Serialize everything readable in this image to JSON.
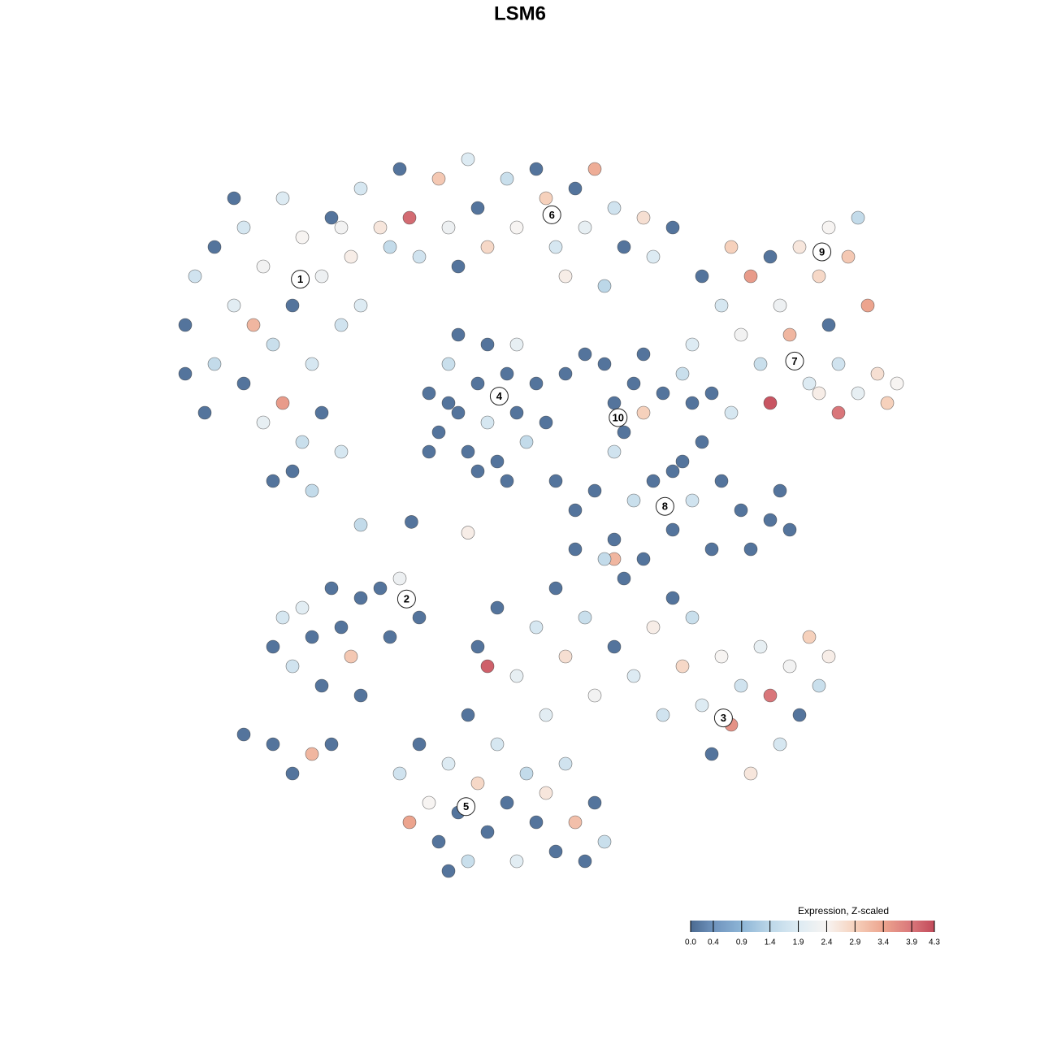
{
  "chart_data": {
    "type": "scatter",
    "title": "LSM6",
    "xlim": [
      -40,
      40
    ],
    "ylim": [
      -40,
      40
    ],
    "series": [
      {
        "name": "cells",
        "x": [
          -36,
          -35,
          -33,
          -31,
          -30,
          -28,
          -27,
          -26,
          -25,
          -24,
          -23,
          -22,
          -21,
          -20,
          -19,
          -33,
          -30,
          -28,
          -26,
          -24,
          -22,
          -25,
          -27,
          -20,
          -23,
          -31,
          -18,
          -29,
          -36,
          -34,
          -18,
          -16,
          -14,
          -13,
          -12,
          -10,
          -9,
          -7,
          -6,
          -5,
          -3,
          -2,
          0,
          1,
          2,
          4,
          5,
          6,
          8,
          9,
          11,
          12,
          14,
          -15,
          -8,
          3,
          7,
          -20,
          -11,
          -10,
          -9,
          -8,
          -7,
          -6,
          -5,
          -5,
          -4,
          -3,
          -2,
          -1,
          0,
          1,
          -8,
          -2,
          -11,
          -6,
          -3,
          -9,
          3,
          5,
          7,
          8,
          9,
          10,
          8,
          11,
          11,
          13,
          17,
          19,
          20,
          21,
          22,
          23,
          24,
          25,
          26,
          27,
          28,
          29,
          30,
          31,
          32,
          33,
          34,
          35,
          36,
          37,
          31,
          29,
          24,
          20,
          18,
          15,
          16,
          33,
          30,
          2,
          4,
          6,
          8,
          10,
          12,
          14,
          15,
          16,
          18,
          19,
          21,
          22,
          24,
          25,
          26,
          17,
          16,
          14,
          8,
          -27,
          -25,
          -23,
          -22,
          -20,
          -19,
          -18,
          -16,
          -15,
          -14,
          -12,
          -24,
          -26,
          -21,
          -30,
          -27,
          -25,
          -23,
          -21,
          -18,
          -6,
          -4,
          -2,
          0,
          2,
          3,
          5,
          6,
          8,
          9,
          10,
          12,
          13,
          14,
          15,
          17,
          18,
          19,
          20,
          21,
          22,
          23,
          24,
          25,
          26,
          27,
          28,
          29,
          30,
          -5,
          4,
          7,
          11,
          16,
          -7,
          1,
          -14,
          -12,
          -11,
          -10,
          -9,
          -8,
          -7,
          -6,
          -5,
          -4,
          -3,
          -2,
          -1,
          0,
          1,
          2,
          3,
          4,
          6,
          7,
          -13,
          -9,
          5,
          -18,
          -12.8,
          -7
        ],
        "y": [
          20,
          25,
          28,
          22,
          30,
          26,
          18,
          33,
          22,
          29,
          16,
          25,
          31,
          20,
          27,
          16,
          14,
          10,
          12,
          8,
          11,
          5,
          4,
          7,
          3,
          33,
          22,
          20,
          15,
          11,
          34,
          30,
          36,
          31,
          27,
          35,
          30,
          37,
          32,
          28,
          35,
          30,
          36,
          33,
          28,
          34,
          30,
          36,
          32,
          28,
          31,
          27,
          30,
          28,
          26,
          25,
          24,
          30,
          13,
          9,
          16,
          11,
          7,
          14,
          18,
          10,
          6,
          15,
          11,
          8,
          14,
          10,
          19,
          18,
          7,
          5,
          4,
          12,
          15,
          17,
          16,
          12,
          9,
          14,
          7,
          11,
          17,
          13,
          25,
          22,
          28,
          19,
          25,
          16,
          27,
          22,
          19,
          28,
          14,
          25,
          30,
          16,
          27,
          13,
          22,
          15,
          12,
          14,
          11,
          13,
          12,
          11,
          13,
          15,
          18,
          31,
          20,
          4,
          1,
          3,
          -2,
          2,
          4,
          -1,
          6,
          2,
          -3,
          4,
          1,
          -3,
          0,
          3,
          -1,
          8,
          12,
          5,
          -4,
          -13,
          -15,
          -12,
          -17,
          -11,
          -14,
          -8,
          -7,
          -12,
          -6,
          -10,
          -9,
          -10,
          -7,
          -22,
          -23,
          -26,
          -24,
          -23,
          -18,
          -13,
          -9,
          -16,
          -11,
          -7,
          -14,
          -10,
          -18,
          -13,
          -6,
          -16,
          -11,
          -20,
          -8,
          -15,
          -19,
          -24,
          -14,
          -21,
          -17,
          -26,
          -13,
          -18,
          -23,
          -15,
          -20,
          -12,
          -17,
          -14,
          -15,
          -3,
          -4,
          -4,
          -10,
          -20,
          -20,
          -26,
          -23,
          -29,
          -33,
          -25,
          -30,
          -35,
          -27,
          -32,
          -23,
          -29,
          -35,
          -26,
          -31,
          -28,
          -34,
          -25,
          -31,
          -29,
          -33,
          -31,
          -36,
          -35,
          -0.5,
          -0.2,
          -1.3
        ],
        "values": [
          0.1,
          1.7,
          0.1,
          2.0,
          1.8,
          2.3,
          1.6,
          1.9,
          0.1,
          2.4,
          1.8,
          2.2,
          0.1,
          1.7,
          2.5,
          1.5,
          0.1,
          2.1,
          3.5,
          1.6,
          0.1,
          0.1,
          0.1,
          1.8,
          1.5,
          0.1,
          1.9,
          3.2,
          0.1,
          0.1,
          1.8,
          2.6,
          0.1,
          4.0,
          1.7,
          3.0,
          2.2,
          1.9,
          0.1,
          2.8,
          1.6,
          2.4,
          0.1,
          2.9,
          1.8,
          0.1,
          2.1,
          3.3,
          1.7,
          0.1,
          2.7,
          1.9,
          0.1,
          1.5,
          0.1,
          2.5,
          1.4,
          2.3,
          0.1,
          0.1,
          1.6,
          0.1,
          0.1,
          0.1,
          0.1,
          1.8,
          0.1,
          0.1,
          0.1,
          1.5,
          0.1,
          0.1,
          0.1,
          2.1,
          0.1,
          0.1,
          0.1,
          0.1,
          0.1,
          0.1,
          0.1,
          0.1,
          0.1,
          0.1,
          1.7,
          2.9,
          0.1,
          0.1,
          0.1,
          1.8,
          2.9,
          2.3,
          3.5,
          1.6,
          0.1,
          2.2,
          3.2,
          2.6,
          1.9,
          2.8,
          2.4,
          1.7,
          3.0,
          2.1,
          3.4,
          2.7,
          2.9,
          2.4,
          3.9,
          2.5,
          4.2,
          1.8,
          0.1,
          1.6,
          1.9,
          1.5,
          0.1,
          0.1,
          0.1,
          0.1,
          0.1,
          1.6,
          0.1,
          0.1,
          0.1,
          1.7,
          0.1,
          0.1,
          0.1,
          0.1,
          0.1,
          0.1,
          0.1,
          0.1,
          0.1,
          0.1,
          3.2,
          0.1,
          1.7,
          0.1,
          0.1,
          0.1,
          3.0,
          0.1,
          0.1,
          0.1,
          2.2,
          0.1,
          2.0,
          1.8,
          0.1,
          0.1,
          0.1,
          0.1,
          3.2,
          0.1,
          0.1,
          0.1,
          0.1,
          2.1,
          1.8,
          0.1,
          2.7,
          1.6,
          2.3,
          0.1,
          0.1,
          1.9,
          2.5,
          1.7,
          0.1,
          2.8,
          1.9,
          0.1,
          2.4,
          3.6,
          1.7,
          2.6,
          2.1,
          3.9,
          1.8,
          2.3,
          0.1,
          2.9,
          1.6,
          2.5,
          4.1,
          0.1,
          1.5,
          0.1,
          1.6,
          0.1,
          2.0,
          1.7,
          0.1,
          2.4,
          0.1,
          1.9,
          0.1,
          1.6,
          2.8,
          0.1,
          1.8,
          0.1,
          2.0,
          1.5,
          0.1,
          2.6,
          0.1,
          1.7,
          3.1,
          0.1,
          1.6,
          3.4,
          0.1,
          0.1,
          1.5,
          0.1,
          2.5
        ]
      }
    ],
    "cluster_labels": [
      {
        "label": "1",
        "x": -24.2,
        "y": 24.7
      },
      {
        "label": "2",
        "x": -13.3,
        "y": -8.1
      },
      {
        "label": "3",
        "x": 19.2,
        "y": -20.3
      },
      {
        "label": "4",
        "x": -3.8,
        "y": 12.7
      },
      {
        "label": "5",
        "x": -7.2,
        "y": -29.4
      },
      {
        "label": "6",
        "x": 1.6,
        "y": 31.3
      },
      {
        "label": "7",
        "x": 26.5,
        "y": 16.3
      },
      {
        "label": "8",
        "x": 13.2,
        "y": 1.4
      },
      {
        "label": "9",
        "x": 29.3,
        "y": 27.5
      },
      {
        "label": "10",
        "x": 8.4,
        "y": 10.5
      }
    ],
    "colorbar": {
      "title": "Expression, Z-scaled",
      "clim": [
        0,
        4.3
      ],
      "ticks": [
        {
          "value": 0,
          "label": "0.0"
        },
        0.4,
        0.9,
        1.4,
        1.9,
        2.4,
        2.9,
        3.4,
        3.9,
        4.3
      ],
      "colors": [
        "#4b6a91",
        "#6f93bd",
        "#8db5d6",
        "#bcd7e8",
        "#ddebf3",
        "#f7f4f2",
        "#f6d1bc",
        "#eca48e",
        "#d9767a",
        "#c24a5a"
      ]
    }
  }
}
